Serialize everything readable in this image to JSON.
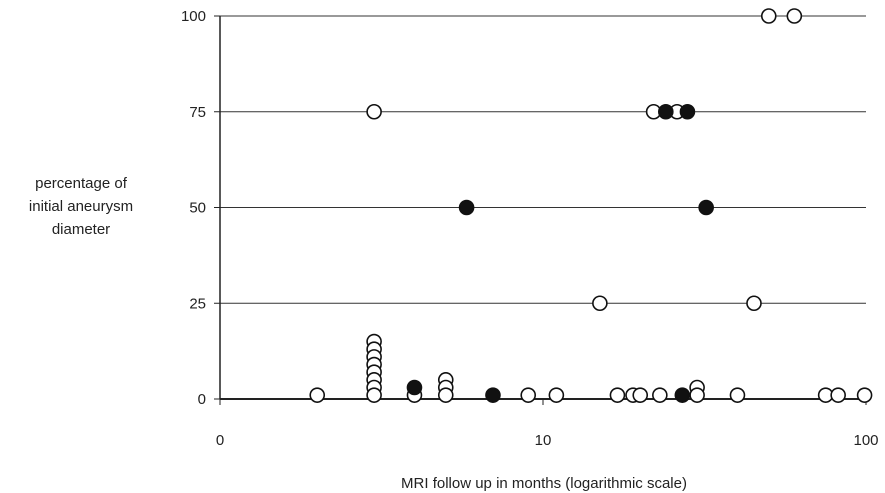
{
  "chart_data": {
    "type": "scatter",
    "title": "",
    "xlabel": "MRI follow up in months (logarithmic scale)",
    "ylabel_lines": [
      "percentage of",
      "initial aneurysm",
      "diameter"
    ],
    "x_scale": "log",
    "xlim": [
      1,
      100
    ],
    "ylim": [
      0,
      100
    ],
    "x_tick_labels": [
      "0",
      "10",
      "100"
    ],
    "y_ticks": [
      0,
      25,
      50,
      75,
      100
    ],
    "y_tick_labels": [
      "0",
      "25",
      "50",
      "75",
      "100"
    ],
    "grid": "horizontal",
    "legend": "none",
    "colors": {
      "open_fill": "#ffffff",
      "filled": "#111111",
      "stroke": "#111111",
      "axis": "#222222",
      "grid": "#333333"
    },
    "series": [
      {
        "marker": "open",
        "points": [
          {
            "x": 50,
            "y": 100
          },
          {
            "x": 60,
            "y": 100
          },
          {
            "x": 3,
            "y": 75
          },
          {
            "x": 22,
            "y": 75
          },
          {
            "x": 26,
            "y": 75
          },
          {
            "x": 15,
            "y": 25
          },
          {
            "x": 45,
            "y": 25
          },
          {
            "x": 3,
            "y": 15
          },
          {
            "x": 3,
            "y": 13
          },
          {
            "x": 3,
            "y": 11
          },
          {
            "x": 3,
            "y": 9
          },
          {
            "x": 3,
            "y": 7
          },
          {
            "x": 3,
            "y": 5
          },
          {
            "x": 3,
            "y": 3
          },
          {
            "x": 3,
            "y": 1
          },
          {
            "x": 5,
            "y": 5
          },
          {
            "x": 5,
            "y": 3
          },
          {
            "x": 5,
            "y": 1
          },
          {
            "x": 30,
            "y": 3
          },
          {
            "x": 2,
            "y": 1
          },
          {
            "x": 4,
            "y": 1
          },
          {
            "x": 9,
            "y": 1
          },
          {
            "x": 11,
            "y": 1
          },
          {
            "x": 17,
            "y": 1
          },
          {
            "x": 19,
            "y": 1
          },
          {
            "x": 20,
            "y": 1
          },
          {
            "x": 23,
            "y": 1
          },
          {
            "x": 30,
            "y": 1
          },
          {
            "x": 40,
            "y": 1
          },
          {
            "x": 75,
            "y": 1
          },
          {
            "x": 82,
            "y": 1
          },
          {
            "x": 99,
            "y": 1
          }
        ]
      },
      {
        "marker": "filled",
        "points": [
          {
            "x": 24,
            "y": 75
          },
          {
            "x": 28,
            "y": 75
          },
          {
            "x": 5.8,
            "y": 50
          },
          {
            "x": 32,
            "y": 50
          },
          {
            "x": 4,
            "y": 3
          },
          {
            "x": 7,
            "y": 1
          },
          {
            "x": 27,
            "y": 1
          }
        ]
      }
    ]
  }
}
